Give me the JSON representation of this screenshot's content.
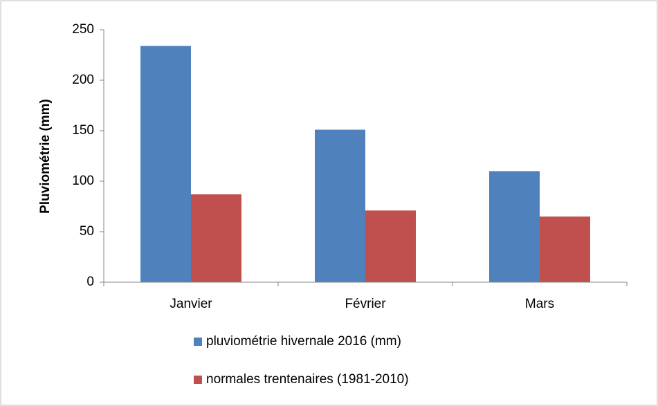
{
  "chart_data": {
    "type": "bar",
    "y_label": "Pluviométrie (mm)",
    "categories": [
      "Janvier",
      "Février",
      "Mars"
    ],
    "series": [
      {
        "name": "pluviométrie hivernale 2016 (mm)",
        "color": "#4f81bd",
        "values": [
          234,
          151,
          110
        ]
      },
      {
        "name": "normales trentenaires (1981-2010)",
        "color": "#c0504d",
        "values": [
          87,
          71,
          65
        ]
      }
    ],
    "ylim": [
      0,
      250
    ],
    "yticks": [
      0,
      50,
      100,
      150,
      200,
      250
    ],
    "grid": false,
    "legend": "bottom"
  }
}
